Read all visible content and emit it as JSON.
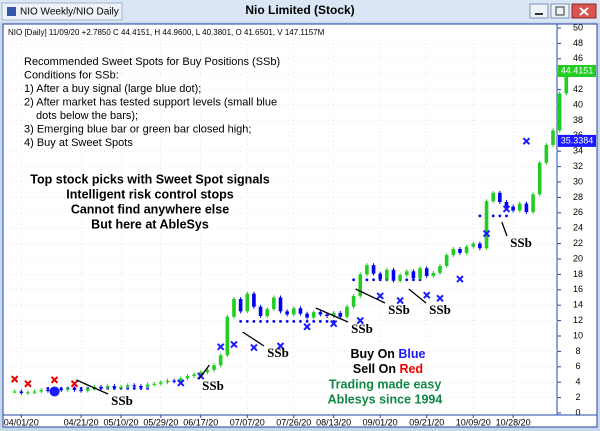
{
  "window": {
    "tab": "NIO Weekly/NIO Daily",
    "title": "Nio Limited (Stock)"
  },
  "chart_data": {
    "type": "bar-chart",
    "header": "NIO [Daily] 11/09/20 +2.7850 C 44.4151, H 44.9600, L 40.3801, O 41.6501, V 147.1157M",
    "notes": [
      "Recommended Sweet Spots for Buy Positions (SSb)",
      "Conditions for SSb:",
      "1) After a buy signal (large blue dot);",
      "2) After market has tested support levels (small blue",
      "dots below the bars);",
      "3) Emerging blue bar or green bar closed high;",
      "4) Buy at Sweet Spots"
    ],
    "promo": [
      "Top stock picks with Sweet Spot signals",
      "Intelligent risk control stops",
      "Cannot find anywhere else",
      "But here at AbleSys"
    ],
    "legend": {
      "buy": "Buy On ",
      "buy_word": "Blue",
      "sell": "Sell On ",
      "sell_word": "Red",
      "line1": "Trading made easy",
      "line2": "Ablesys since 1994"
    },
    "signal_label": "SSb",
    "up_color": "#22cc22",
    "down_color": "#0000ee",
    "values": [
      2.8,
      2.6,
      2.7,
      2.8,
      3.0,
      2.9,
      3.1,
      3.0,
      3.2,
      3.0,
      2.9,
      3.2,
      3.4,
      3.3,
      3.5,
      3.3,
      3.4,
      3.6,
      3.5,
      3.4,
      3.7,
      3.8,
      4.0,
      4.2,
      4.1,
      4.5,
      4.8,
      5.0,
      5.3,
      5.6,
      6.2,
      7.5,
      12.5,
      14.8,
      13.2,
      15.5,
      13.8,
      12.6,
      13.5,
      15.0,
      13.2,
      12.8,
      13.6,
      12.9,
      12.4,
      13.1,
      12.8,
      12.6,
      13.0,
      12.5,
      13.8,
      15.2,
      18.0,
      19.2,
      18.1,
      17.4,
      18.6,
      17.2,
      17.9,
      18.4,
      17.5,
      18.8,
      17.8,
      18.2,
      19.1,
      20.5,
      21.3,
      20.8,
      21.6,
      22.0,
      21.4,
      27.5,
      28.6,
      27.4,
      26.8,
      26.3,
      27.2,
      26.1,
      28.4,
      32.5,
      34.8,
      36.7,
      41.5,
      44.4
    ],
    "sell_stops": {
      "color": "#ee0000",
      "x": [
        0,
        2,
        6,
        9
      ],
      "y": [
        4.4,
        3.8,
        4.3,
        3.8
      ]
    },
    "buy_stops": {
      "color": "#1a1aff",
      "x": [
        25,
        28,
        31,
        33,
        36,
        40,
        44,
        48,
        52,
        55,
        58,
        62,
        64,
        67,
        71,
        74,
        77
      ],
      "y": [
        3.9,
        4.8,
        8.6,
        8.9,
        8.5,
        8.7,
        11.2,
        11.6,
        12.0,
        15.2,
        14.6,
        15.3,
        14.9,
        17.4,
        23.3,
        26.5,
        35.3
      ]
    },
    "buy_signal": {
      "x": 6,
      "y": 2.8,
      "color": "#1a1aff"
    },
    "support": [
      {
        "start": 5,
        "end": 20,
        "value": 3.2
      },
      {
        "start": 34,
        "end": 48,
        "value": 11.9
      },
      {
        "start": 51,
        "end": 61,
        "value": 17.3
      },
      {
        "start": 70,
        "end": 74,
        "value": 25.6
      }
    ],
    "last_price": {
      "value": 44.4151,
      "label": "44.4151",
      "color": "#22cc22"
    },
    "stop_price": {
      "value": 35.3384,
      "label": "35.3384",
      "color": "#1a1aff"
    },
    "xlim": [
      -1,
      81
    ],
    "xticks": [
      {
        "value": 1,
        "label": "04/01/20"
      },
      {
        "value": 10,
        "label": "04/21/20"
      },
      {
        "value": 16,
        "label": "05/10/20"
      },
      {
        "value": 22,
        "label": "05/29/20"
      },
      {
        "value": 28,
        "label": "06/17/20"
      },
      {
        "value": 35,
        "label": "07/07/20"
      },
      {
        "value": 42,
        "label": "07/26/20"
      },
      {
        "value": 48,
        "label": "08/13/20"
      },
      {
        "value": 55,
        "label": "09/01/20"
      },
      {
        "value": 62,
        "label": "09/21/20"
      },
      {
        "value": 69,
        "label": "10/09/20"
      },
      {
        "value": 75,
        "label": "10/28/20"
      }
    ],
    "ylim": [
      0,
      50
    ],
    "yticks": [
      0,
      2,
      4,
      6,
      8,
      10,
      12,
      14,
      16,
      18,
      20,
      22,
      24,
      26,
      28,
      30,
      32,
      34,
      36,
      38,
      40,
      42,
      44,
      46,
      48,
      50
    ],
    "grid": true
  }
}
